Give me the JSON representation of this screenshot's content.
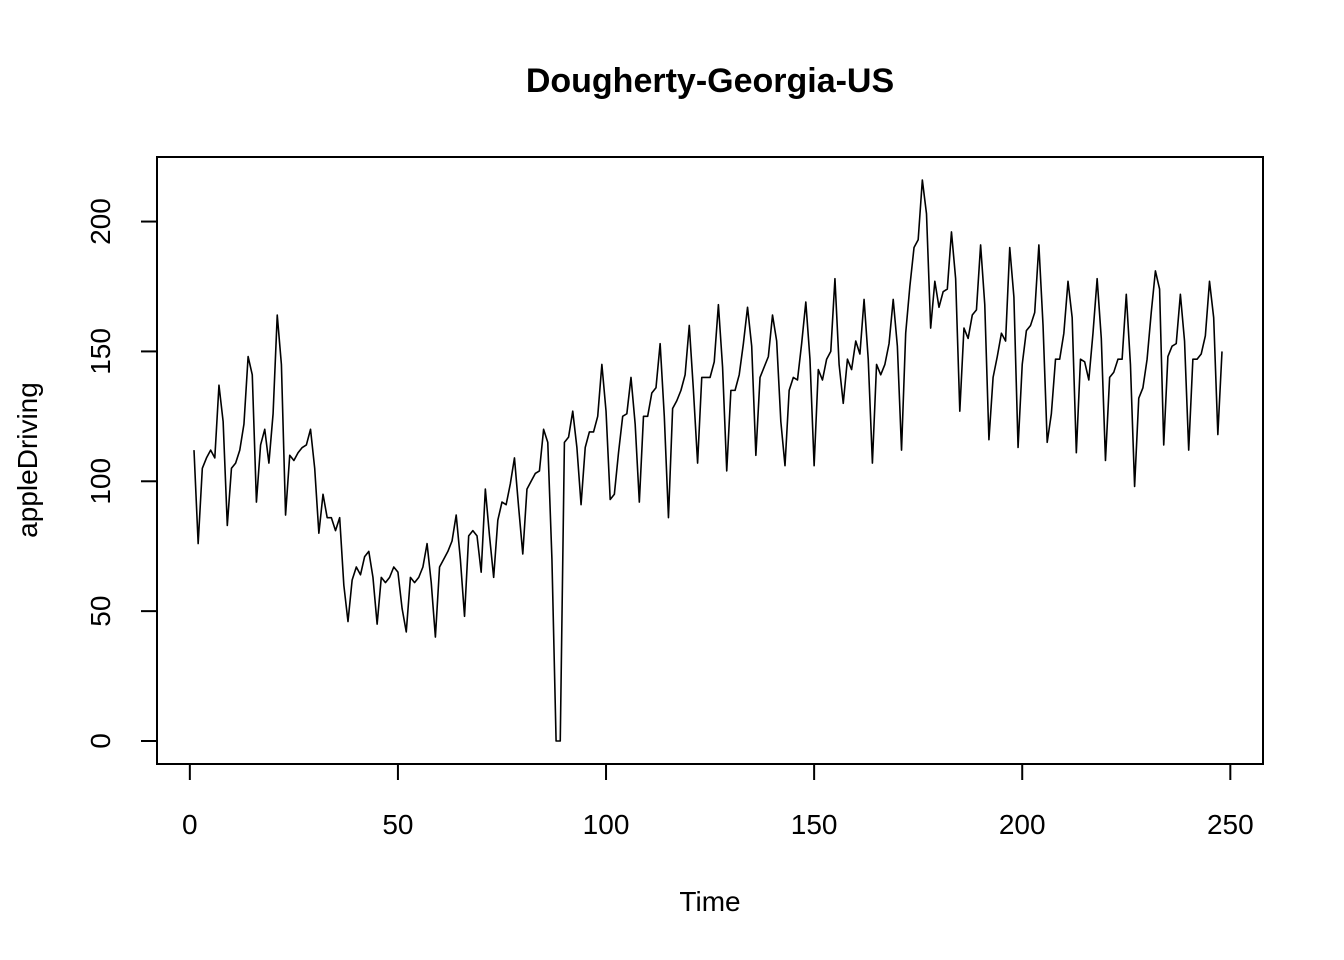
{
  "chart_data": {
    "type": "line",
    "title": "Dougherty-Georgia-US",
    "xlabel": "Time",
    "ylabel": "appleDriving",
    "xlim": [
      1,
      248
    ],
    "ylim": [
      0,
      216
    ],
    "x_ticks": [
      "0",
      "50",
      "100",
      "150",
      "200",
      "250"
    ],
    "y_ticks": [
      "0",
      "50",
      "100",
      "150",
      "200"
    ],
    "grid": false,
    "legend": "none",
    "line_color": "#000000",
    "series": [
      {
        "x_start": 1,
        "x_step": 1,
        "values": [
          112,
          76,
          105,
          109,
          112,
          109,
          137,
          123,
          83,
          105,
          107,
          112,
          122,
          148,
          141,
          92,
          114,
          120,
          107,
          126,
          164,
          145,
          87,
          110,
          108,
          111,
          113,
          114,
          120,
          105,
          80,
          95,
          86,
          86,
          81,
          86,
          60,
          46,
          62,
          67,
          64,
          71,
          73,
          63,
          45,
          63,
          61,
          63,
          67,
          65,
          51,
          42,
          63,
          61,
          63,
          67,
          76,
          61,
          40,
          67,
          70,
          73,
          77,
          87,
          70,
          48,
          79,
          81,
          79,
          65,
          97,
          79,
          63,
          85,
          92,
          91,
          99,
          109,
          90,
          72,
          97,
          100,
          103,
          104,
          120,
          115,
          70,
          0,
          0,
          115,
          117,
          127,
          113,
          91,
          113,
          119,
          119,
          125,
          145,
          127,
          93,
          95,
          111,
          125,
          126,
          140,
          122,
          92,
          125,
          125,
          134,
          136,
          153,
          125,
          86,
          128,
          131,
          135,
          141,
          160,
          135,
          107,
          140,
          140,
          140,
          146,
          168,
          144,
          104,
          135,
          135,
          141,
          153,
          167,
          152,
          110,
          140,
          144,
          148,
          164,
          154,
          123,
          106,
          135,
          140,
          139,
          153,
          169,
          147,
          106,
          143,
          139,
          147,
          150,
          178,
          145,
          130,
          147,
          143,
          154,
          149,
          170,
          147,
          107,
          145,
          141,
          145,
          153,
          170,
          152,
          112,
          157,
          175,
          190,
          193,
          216,
          203,
          159,
          177,
          167,
          173,
          174,
          196,
          178,
          127,
          159,
          155,
          164,
          166,
          191,
          168,
          116,
          140,
          148,
          157,
          154,
          190,
          171,
          113,
          145,
          158,
          160,
          165,
          191,
          160,
          115,
          126,
          147,
          147,
          157,
          177,
          163,
          111,
          147,
          146,
          139,
          157,
          178,
          155,
          108,
          140,
          142,
          147,
          147,
          172,
          145,
          98,
          132,
          136,
          147,
          165,
          181,
          174,
          114,
          148,
          152,
          153,
          172,
          154,
          112,
          147,
          147,
          149,
          156,
          177,
          163,
          118,
          150
        ]
      }
    ]
  }
}
